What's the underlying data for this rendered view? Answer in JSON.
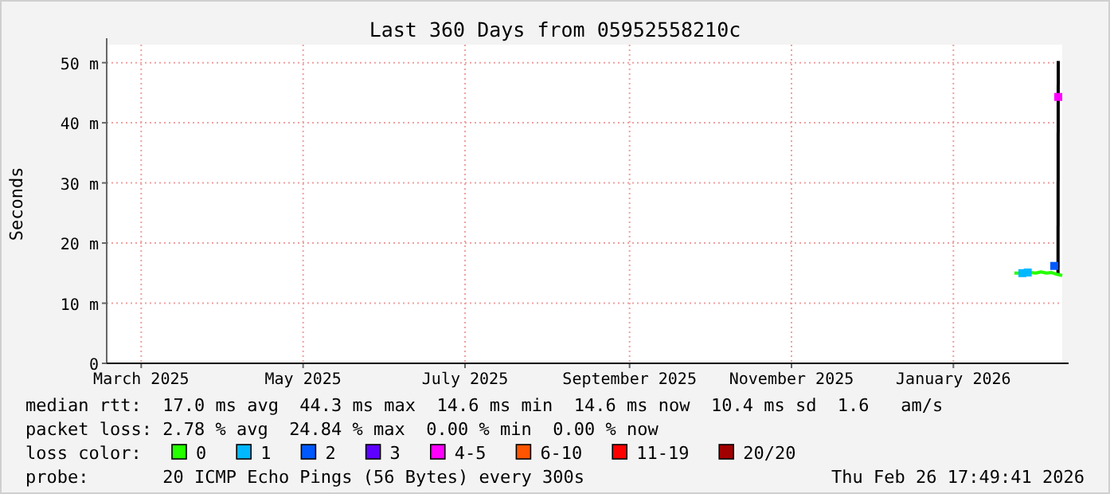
{
  "chart_data": {
    "type": "line",
    "title": "Last 360 Days from 05952558210c",
    "ylabel": "Seconds",
    "legend_title": "loss color:",
    "legend": "bottom",
    "grid": true,
    "marker": "none",
    "xlim": [
      "2025-03-03",
      "2026-02-26"
    ],
    "xticks": [
      {
        "value": "2025-03-16",
        "label": "March 2025"
      },
      {
        "value": "2025-05-16",
        "label": "May 2025"
      },
      {
        "value": "2025-07-16",
        "label": "July 2025"
      },
      {
        "value": "2025-09-16",
        "label": "September 2025"
      },
      {
        "value": "2025-11-16",
        "label": "November 2025"
      },
      {
        "value": "2026-01-16",
        "label": "January 2026"
      }
    ],
    "ylim": [
      0,
      53
    ],
    "yticks": [
      {
        "value": 0,
        "label": "0"
      },
      {
        "value": 10,
        "label": "10 m"
      },
      {
        "value": 20,
        "label": "20 m"
      },
      {
        "value": 30,
        "label": "30 m"
      },
      {
        "value": 40,
        "label": "40 m"
      },
      {
        "value": 50,
        "label": "50 m"
      }
    ],
    "series": [
      {
        "type": "line",
        "color": "#000000",
        "x": [
          "2026-02-24T10:00",
          "2026-02-24T12:00"
        ],
        "values": [
          14.6,
          50.3
        ]
      },
      {
        "name": "0",
        "color": "#26ff00",
        "x": [
          "2026-02-08",
          "2026-02-10",
          "2026-02-12",
          "2026-02-14",
          "2026-02-16",
          "2026-02-18",
          "2026-02-20",
          "2026-02-22",
          "2026-02-24",
          "2026-02-26"
        ],
        "values": [
          15.0,
          15.0,
          15.1,
          15.1,
          15.0,
          15.2,
          15.0,
          15.1,
          14.8,
          14.6
        ]
      },
      {
        "name": "1",
        "type": "scatter",
        "marker": "square",
        "color": "#00b8ff",
        "x": [
          "2026-02-11",
          "2026-02-13"
        ],
        "values": [
          15.0,
          15.1
        ]
      },
      {
        "name": "2",
        "type": "scatter",
        "marker": "square",
        "color": "#0059ff",
        "x": [
          "2026-02-23"
        ],
        "values": [
          16.2
        ]
      },
      {
        "name": "3",
        "color": "#5e00ff"
      },
      {
        "name": "4-5",
        "type": "scatter",
        "marker": "square",
        "color": "#ff00ff",
        "x": [
          "2026-02-24T12:00"
        ],
        "values": [
          44.3
        ]
      },
      {
        "name": "6-10",
        "color": "#ff5500"
      },
      {
        "name": "11-19",
        "color": "#ff0000"
      },
      {
        "name": "20/20",
        "color": "#a10000"
      }
    ],
    "annotations": [
      "median rtt:  17.0 ms avg  44.3 ms max  14.6 ms min  14.6 ms now  10.4 ms sd  1.6   am/s",
      "packet loss: 2.78 % avg  24.84 % max  0.00 % min  0.00 % now",
      "probe:       20 ICMP Echo Pings (56 Bytes) every 300s",
      "Thu Feb 26 17:49:41 2026"
    ]
  }
}
